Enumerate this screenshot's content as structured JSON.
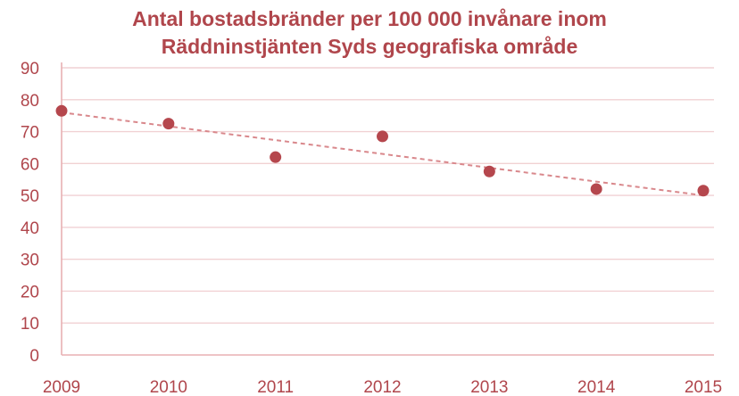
{
  "chart_data": {
    "type": "scatter",
    "title_lines": [
      "Antal bostadsbränder per 100 000 invånare inom",
      "Räddninstjänten Syds geografiska område"
    ],
    "xlabel": "",
    "ylabel": "",
    "x": [
      2009,
      2010,
      2011,
      2012,
      2013,
      2014,
      2015
    ],
    "x_tick_labels": [
      "2009",
      "2010",
      "2011",
      "2012",
      "2013",
      "2014",
      "2015"
    ],
    "y_tick_labels": [
      "0",
      "10",
      "20",
      "30",
      "40",
      "50",
      "60",
      "70",
      "80",
      "90"
    ],
    "series": [
      {
        "values": [
          76.5,
          72.5,
          62,
          68.5,
          57.5,
          52,
          51.5
        ]
      }
    ],
    "trendline": {
      "type": "linear",
      "start": [
        2009,
        76
      ],
      "end": [
        2015,
        50
      ]
    },
    "ylim": [
      0,
      90
    ],
    "grid": true,
    "legend": "none",
    "colors": {
      "marker": "#b5474d",
      "trendline": "#d9888c",
      "grid": "#f1d1d3",
      "axis": "#e8b0b3",
      "text": "#b0464c"
    }
  }
}
